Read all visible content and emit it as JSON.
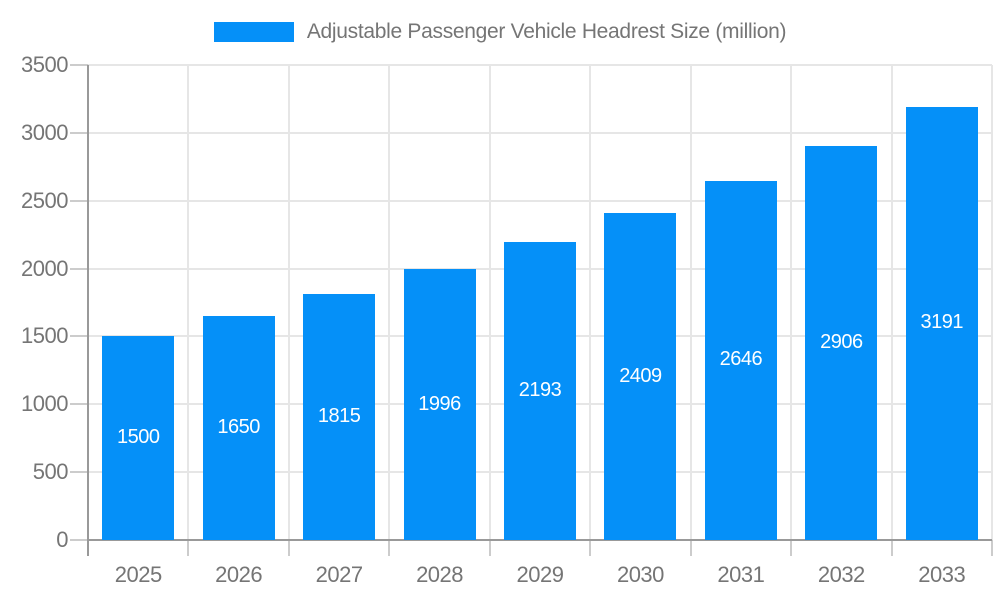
{
  "legend": {
    "label": "Adjustable Passenger Vehicle Headrest Size (million)"
  },
  "chart_data": {
    "type": "bar",
    "title": "Adjustable Passenger Vehicle Headrest Size (million)",
    "categories": [
      "2025",
      "2026",
      "2027",
      "2028",
      "2029",
      "2030",
      "2031",
      "2032",
      "2033"
    ],
    "values": [
      1500,
      1650,
      1815,
      1996,
      2193,
      2409,
      2646,
      2906,
      3191
    ],
    "xlabel": "",
    "ylabel": "",
    "ylim": [
      0,
      3500
    ],
    "yticks": [
      0,
      500,
      1000,
      1500,
      2000,
      2500,
      3000,
      3500
    ],
    "grid": true,
    "legend_position": "top",
    "value_labels": "inside-center",
    "colors": {
      "bar": "#0590f8",
      "bar_label_text": "#ffffff",
      "axis_text": "#757575",
      "gridline": "#e6e6e6",
      "tick": "#cccccc",
      "axis_line": "#999999",
      "background": "#ffffff"
    }
  }
}
